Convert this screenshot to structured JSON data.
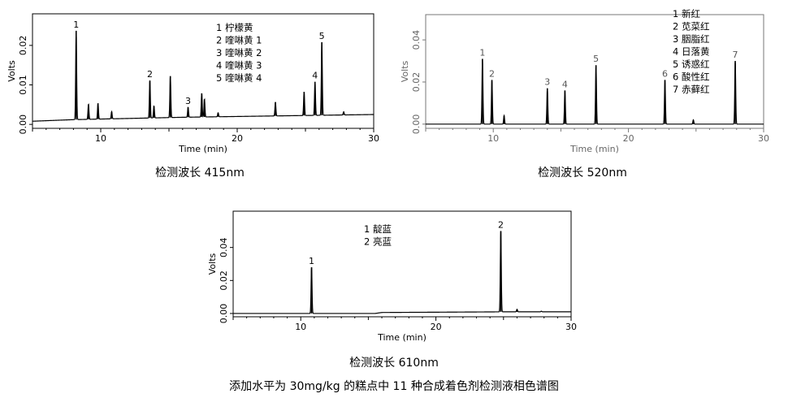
{
  "caption": "添加水平为 30mg/kg 的糕点中 11 种合成着色剂检测液相色谱图",
  "chart_data": [
    {
      "type": "line",
      "subtitle": "检测波长 415nm",
      "xlabel": "Time (min)",
      "ylabel": "Volts",
      "xlim": [
        5,
        30
      ],
      "ylim": [
        -0.001,
        0.028
      ],
      "xticks": [
        10,
        20,
        30
      ],
      "yticks": [
        0.0,
        0.01,
        0.02
      ],
      "ytick_labels": [
        "0.00",
        "0.01",
        "0.02"
      ],
      "legend": [
        "1  柠檬黄",
        "2  喹啉黄 1",
        "3  喹啉黄 2",
        "4  喹啉黄 3",
        "5  喹啉黄 4"
      ],
      "baseline": [
        [
          5,
          0.0008
        ],
        [
          8,
          0.0012
        ],
        [
          12,
          0.0015
        ],
        [
          16,
          0.0018
        ],
        [
          20,
          0.002
        ],
        [
          24,
          0.0022
        ],
        [
          30,
          0.0025
        ]
      ],
      "peaks": [
        {
          "t": 8.2,
          "h": 0.0225,
          "label": "1"
        },
        {
          "t": 9.1,
          "h": 0.0038
        },
        {
          "t": 9.8,
          "h": 0.004
        },
        {
          "t": 10.8,
          "h": 0.0018
        },
        {
          "t": 13.6,
          "h": 0.0095,
          "label": "2"
        },
        {
          "t": 13.9,
          "h": 0.003
        },
        {
          "t": 15.1,
          "h": 0.0105
        },
        {
          "t": 16.4,
          "h": 0.0025,
          "label": "3"
        },
        {
          "t": 17.4,
          "h": 0.006
        },
        {
          "t": 17.6,
          "h": 0.0045
        },
        {
          "t": 18.6,
          "h": 0.001
        },
        {
          "t": 22.8,
          "h": 0.0035
        },
        {
          "t": 24.9,
          "h": 0.006
        },
        {
          "t": 25.7,
          "h": 0.0085,
          "label": "4"
        },
        {
          "t": 26.2,
          "h": 0.0185,
          "label": "5"
        },
        {
          "t": 27.8,
          "h": 0.0008
        }
      ]
    },
    {
      "type": "line",
      "subtitle": "检测波长 520nm",
      "xlabel": "Time (min)",
      "ylabel": "Volts",
      "xlim": [
        5,
        30
      ],
      "ylim": [
        -0.002,
        0.052
      ],
      "xticks": [
        10,
        20,
        30
      ],
      "yticks": [
        0.0,
        0.02,
        0.04
      ],
      "ytick_labels": [
        "0.00",
        "0.02",
        "0.04"
      ],
      "legend": [
        "1  新红",
        "2  苋菜红",
        "3  胭脂红",
        "4  日落黄",
        "5  诱惑红",
        "6  酸性红",
        "7  赤藓红"
      ],
      "baseline": [
        [
          5,
          0.0
        ],
        [
          30,
          0.0
        ]
      ],
      "peaks": [
        {
          "t": 9.2,
          "h": 0.031,
          "label": "1"
        },
        {
          "t": 9.9,
          "h": 0.021,
          "label": "2"
        },
        {
          "t": 10.8,
          "h": 0.004
        },
        {
          "t": 14.0,
          "h": 0.017,
          "label": "3"
        },
        {
          "t": 15.3,
          "h": 0.016,
          "label": "4"
        },
        {
          "t": 17.6,
          "h": 0.028,
          "label": "5"
        },
        {
          "t": 22.7,
          "h": 0.021,
          "label": "6"
        },
        {
          "t": 24.8,
          "h": 0.002
        },
        {
          "t": 27.9,
          "h": 0.03,
          "label": "7"
        }
      ]
    },
    {
      "type": "line",
      "subtitle": "检测波长 610nm",
      "xlabel": "Time (min)",
      "ylabel": "Volts",
      "xlim": [
        5,
        30
      ],
      "ylim": [
        -0.002,
        0.062
      ],
      "xticks": [
        10,
        20,
        30
      ],
      "yticks": [
        0.0,
        0.02,
        0.04
      ],
      "ytick_labels": [
        "0.00",
        "0.02",
        "0.04"
      ],
      "legend": [
        "1  靛蓝",
        "2  亮蓝"
      ],
      "baseline": [
        [
          5,
          0.0
        ],
        [
          15.5,
          0.0
        ],
        [
          16,
          0.0006
        ],
        [
          25,
          0.001
        ],
        [
          30,
          0.001
        ]
      ],
      "peaks": [
        {
          "t": 10.8,
          "h": 0.028,
          "label": "1"
        },
        {
          "t": 24.8,
          "h": 0.049,
          "label": "2"
        },
        {
          "t": 26.0,
          "h": 0.0015
        },
        {
          "t": 27.8,
          "h": 0.0004
        }
      ]
    }
  ]
}
